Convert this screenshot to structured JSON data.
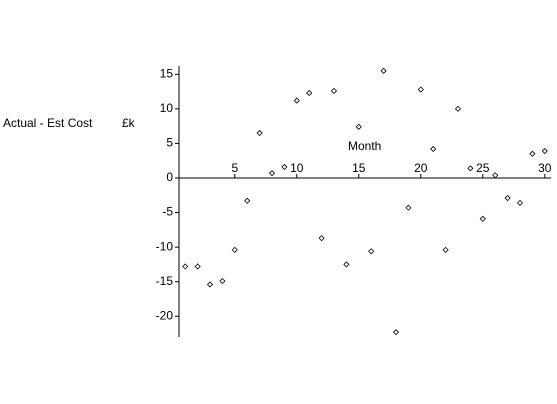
{
  "chart_data": {
    "type": "scatter",
    "xlabel": "Month",
    "ylabel": "Actual - Est Cost",
    "ylabel_unit": "£k",
    "x": [
      1,
      2,
      3,
      4,
      5,
      6,
      7,
      8,
      9,
      10,
      11,
      12,
      13,
      14,
      15,
      16,
      17,
      18,
      19,
      20,
      21,
      22,
      23,
      24,
      25,
      26,
      27,
      28,
      29,
      30
    ],
    "values": [
      -12.8,
      -12.8,
      -15.4,
      -14.9,
      -10.4,
      -3.3,
      6.5,
      0.7,
      1.6,
      11.2,
      12.3,
      -8.7,
      12.6,
      -12.5,
      7.4,
      -10.6,
      15.5,
      -22.3,
      -4.3,
      12.8,
      4.2,
      -10.4,
      10.0,
      1.4,
      -5.9,
      0.4,
      -2.9,
      -3.6,
      3.5,
      3.9
    ],
    "color": "#000000",
    "xlim": [
      0.5,
      30.5
    ],
    "ylim": [
      -23,
      16.2
    ],
    "xticks": [
      5,
      10,
      15,
      20,
      25,
      30
    ],
    "yticks": [
      15,
      10,
      5,
      0,
      -5,
      -10,
      -15,
      -20
    ]
  }
}
